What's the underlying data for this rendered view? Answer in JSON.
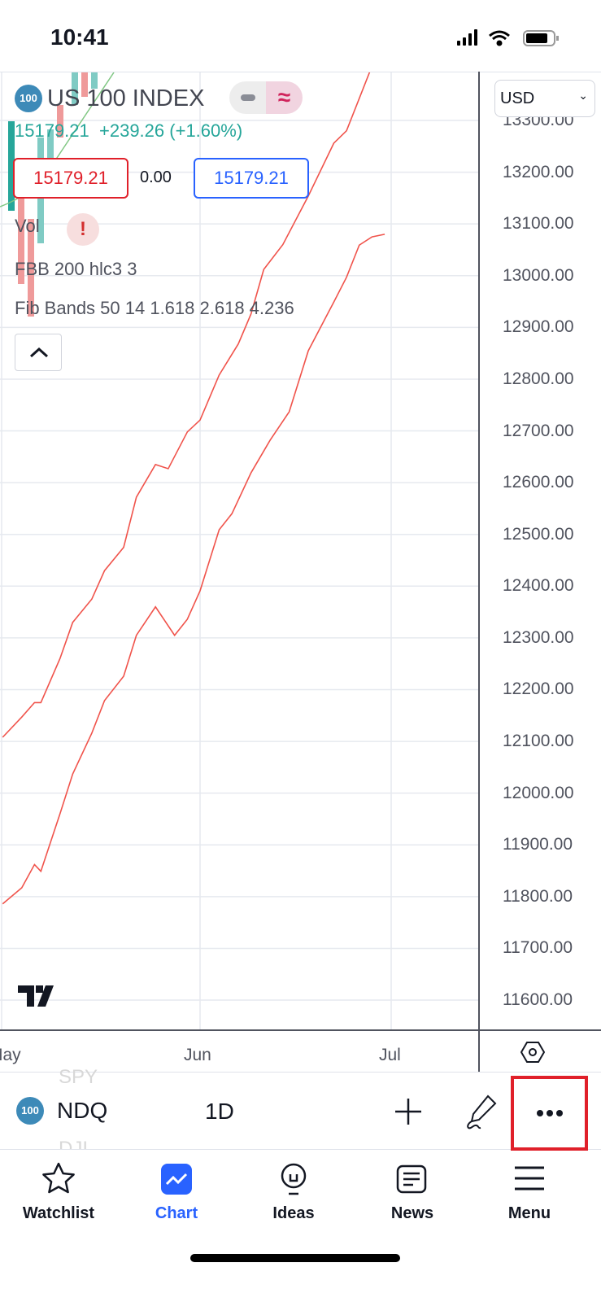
{
  "status_bar": {
    "time": "10:41"
  },
  "chart": {
    "symbol_name": "US 100 INDEX",
    "symbol_badge": "100",
    "last_price": "15179.21",
    "change": "+239.26",
    "change_pct": "(+1.60%)",
    "sell_price": "15179.21",
    "spread": "0.00",
    "buy_price": "15179.21",
    "indicators": [
      "Vol",
      "FBB 200 hlc3 3",
      "Fib Bands 50 14 1.618 2.618 4.236"
    ],
    "currency": "USD",
    "colors": {
      "up": "#26a69a",
      "down": "#ef5350",
      "band": "#f0534b",
      "sell": "#e0202a",
      "buy": "#2962ff"
    }
  },
  "chart_data": {
    "type": "line",
    "y_ticks": [
      "13300.00",
      "13200.00",
      "13100.00",
      "13000.00",
      "12900.00",
      "12800.00",
      "12700.00",
      "12600.00",
      "12500.00",
      "12400.00",
      "12300.00",
      "12200.00",
      "12100.00",
      "12000.00",
      "11900.00",
      "11800.00",
      "11700.00",
      "11600.00"
    ],
    "x_ticks": [
      "May",
      "Jun",
      "Jul"
    ],
    "ylim": [
      11560,
      13340
    ],
    "grid": true,
    "series": [
      {
        "points": [
          [
            "05-01",
            12108
          ],
          [
            "05-04",
            12147
          ],
          [
            "05-06",
            12175
          ],
          [
            "05-07",
            12175
          ],
          [
            "05-10",
            12260
          ],
          [
            "05-12",
            12330
          ],
          [
            "05-15",
            12375
          ],
          [
            "05-17",
            12430
          ],
          [
            "05-20",
            12475
          ],
          [
            "05-22",
            12572
          ],
          [
            "05-25",
            12635
          ],
          [
            "05-27",
            12627
          ],
          [
            "05-30",
            12698
          ],
          [
            "06-01",
            12721
          ],
          [
            "06-04",
            12808
          ],
          [
            "06-07",
            12868
          ],
          [
            "06-09",
            12926
          ],
          [
            "06-11",
            13012
          ],
          [
            "06-14",
            13060
          ],
          [
            "06-18",
            13154
          ],
          [
            "06-22",
            13256
          ],
          [
            "06-24",
            13280
          ],
          [
            "06-28",
            13405
          ]
        ]
      },
      {
        "points": [
          [
            "05-01",
            11786
          ],
          [
            "05-04",
            11817
          ],
          [
            "05-06",
            11862
          ],
          [
            "05-07",
            11849
          ],
          [
            "05-10",
            11960
          ],
          [
            "05-12",
            12037
          ],
          [
            "05-15",
            12116
          ],
          [
            "05-17",
            12179
          ],
          [
            "05-20",
            12226
          ],
          [
            "05-22",
            12305
          ],
          [
            "05-25",
            12360
          ],
          [
            "05-28",
            12305
          ],
          [
            "05-30",
            12336
          ],
          [
            "06-01",
            12391
          ],
          [
            "06-04",
            12509
          ],
          [
            "06-06",
            12540
          ],
          [
            "06-09",
            12619
          ],
          [
            "06-12",
            12682
          ],
          [
            "06-15",
            12737
          ],
          [
            "06-18",
            12855
          ],
          [
            "06-22",
            12949
          ],
          [
            "06-24",
            12997
          ],
          [
            "06-26",
            13059
          ],
          [
            "06-28",
            13075
          ],
          [
            "06-30",
            13080
          ]
        ]
      }
    ]
  },
  "toolbar": {
    "symbol": "NDQ",
    "badge": "100",
    "interval": "1D",
    "prev_symbol": "SPY",
    "next_symbol": "DJI"
  },
  "tabs": [
    {
      "label": "Watchlist"
    },
    {
      "label": "Chart"
    },
    {
      "label": "Ideas"
    },
    {
      "label": "News"
    },
    {
      "label": "Menu"
    }
  ]
}
